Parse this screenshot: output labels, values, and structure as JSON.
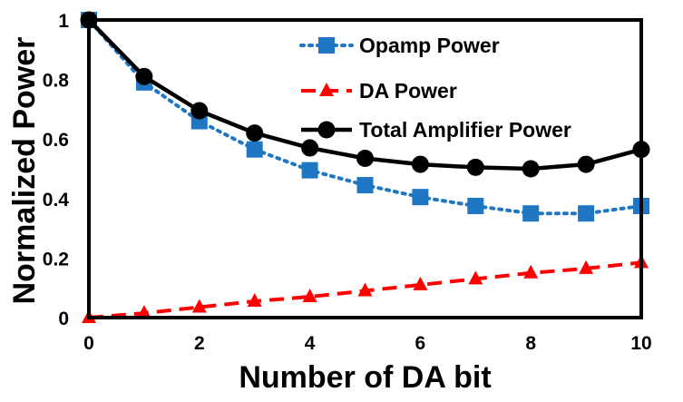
{
  "chart_data": {
    "type": "line",
    "xlabel": "Number of DA bit",
    "ylabel": "Normalized Power",
    "xlim": [
      0,
      10
    ],
    "ylim": [
      0,
      1
    ],
    "x_ticks": [
      "0",
      "2",
      "4",
      "6",
      "8",
      "10"
    ],
    "y_ticks": [
      "0",
      "0.2",
      "0.4",
      "0.6",
      "0.8",
      "1"
    ],
    "grid": false,
    "legend": "top-right",
    "x": [
      0,
      1,
      2,
      3,
      4,
      5,
      6,
      7,
      8,
      9,
      10
    ],
    "series": [
      {
        "name": "Opamp Power",
        "values": [
          1.0,
          0.79,
          0.66,
          0.565,
          0.495,
          0.445,
          0.405,
          0.375,
          0.35,
          0.35,
          0.375
        ],
        "color": "#1f77c4",
        "marker": "square",
        "line": "dotted"
      },
      {
        "name": "DA Power",
        "values": [
          0.0,
          0.015,
          0.035,
          0.055,
          0.07,
          0.09,
          0.11,
          0.13,
          0.15,
          0.165,
          0.185
        ],
        "color": "#ff0000",
        "marker": "triangle",
        "line": "dashed"
      },
      {
        "name": "Total Amplifier Power",
        "values": [
          1.0,
          0.81,
          0.695,
          0.62,
          0.57,
          0.535,
          0.515,
          0.505,
          0.5,
          0.515,
          0.565
        ],
        "color": "#000000",
        "marker": "circle",
        "line": "solid"
      }
    ]
  }
}
